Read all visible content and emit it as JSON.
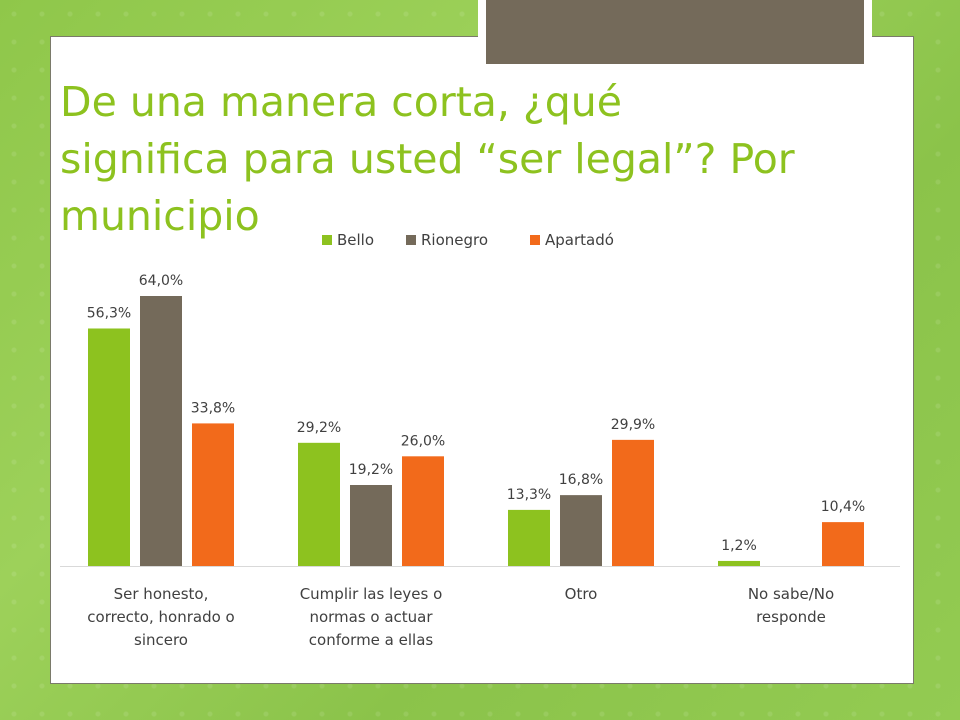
{
  "slide": {
    "title": "De una manera corta, ¿qué\nsignifica para usted “ser legal”? Por\nmunicipio"
  },
  "chart_data": {
    "type": "bar",
    "categories": [
      [
        "Ser honesto,",
        "correcto, honrado o",
        "sincero"
      ],
      [
        "Cumplir las leyes o",
        "normas o actuar",
        "conforme a ellas"
      ],
      [
        "Otro"
      ],
      [
        "No sabe/No",
        "responde"
      ]
    ],
    "series": [
      {
        "name": "Bello",
        "color": "#8dc21f",
        "values": [
          56.3,
          29.2,
          13.3,
          1.2
        ],
        "labels": [
          "56,3%",
          "29,2%",
          "13,3%",
          "1,2%"
        ]
      },
      {
        "name": "Rionegro",
        "color": "#746a5a",
        "values": [
          64.0,
          19.2,
          16.8,
          null
        ],
        "labels": [
          "64,0%",
          "19,2%",
          "16,8%",
          ""
        ]
      },
      {
        "name": "Apartadó",
        "color": "#f26a1b",
        "values": [
          33.8,
          26.0,
          29.9,
          10.4
        ],
        "labels": [
          "33,8%",
          "26,0%",
          "29,9%",
          "10,4%"
        ]
      }
    ],
    "ylim": [
      0,
      64
    ],
    "legend": "top-center",
    "grid": false
  }
}
